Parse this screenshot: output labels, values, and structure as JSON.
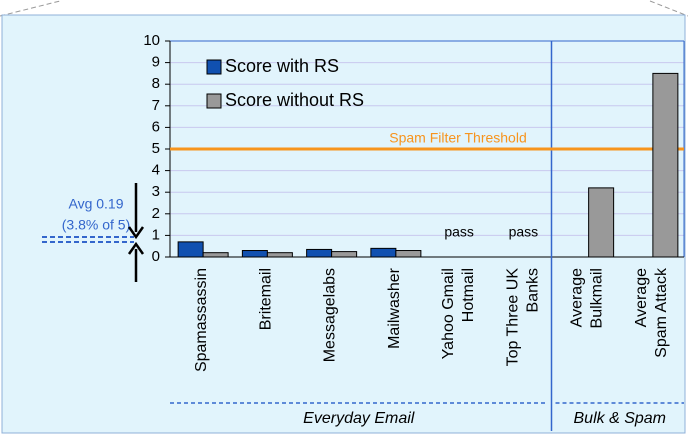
{
  "chart_data": {
    "type": "bar",
    "categories": [
      "Spamassassin",
      "Britemail",
      "Messagelabs",
      "Mailwasher",
      "Yahoo Gmail\nHotmail",
      "Top Three UK\nBanks",
      "Average\nBulkmail",
      "Average\nSpam Attack"
    ],
    "series": [
      {
        "name": "Score with RS",
        "color": "#1050b0",
        "values": [
          0.7,
          0.3,
          0.35,
          0.4,
          null,
          null,
          null,
          null
        ],
        "value_labels": [
          null,
          null,
          null,
          null,
          "pass",
          "pass",
          null,
          null
        ]
      },
      {
        "name": "Score without RS",
        "color": "#999999",
        "values": [
          0.2,
          0.2,
          0.25,
          0.3,
          null,
          null,
          3.2,
          8.5
        ]
      }
    ],
    "ylim": [
      0,
      10
    ],
    "yticks": [
      0,
      1,
      2,
      3,
      4,
      5,
      6,
      7,
      8,
      9,
      10
    ],
    "grid": true,
    "legend": "top-left",
    "threshold": {
      "value": 5,
      "label": "Spam Filter Threshold",
      "color": "#f7941d"
    },
    "average_note": [
      "Avg 0.19",
      "(3.8% of 5)"
    ],
    "groups": [
      {
        "label": "Everyday Email",
        "span": [
          0,
          5
        ]
      },
      {
        "label": "Bulk & Spam",
        "span": [
          6,
          7
        ]
      }
    ]
  }
}
